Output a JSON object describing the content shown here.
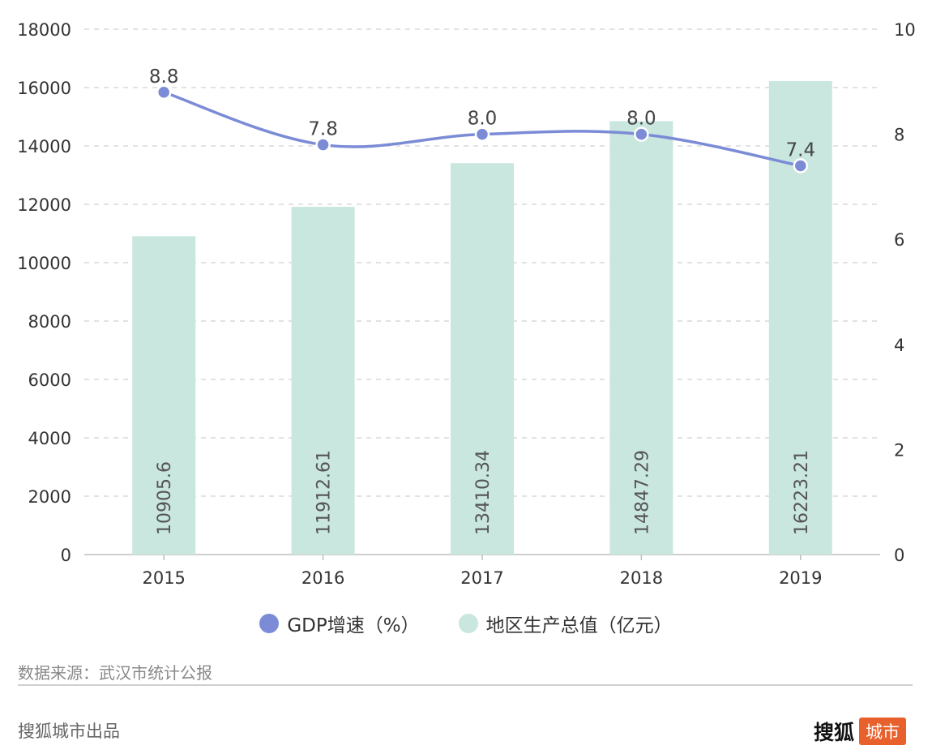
{
  "chart_data": {
    "type": "bar",
    "categories": [
      "2015",
      "2016",
      "2017",
      "2018",
      "2019"
    ],
    "series": [
      {
        "name": "地区生产总值（亿元）",
        "type": "bar",
        "axis": "left",
        "values": [
          10905.6,
          11912.61,
          13410.34,
          14847.29,
          16223.21
        ],
        "labels": [
          "10905.6",
          "11912.61",
          "13410.34",
          "14847.29",
          "16223.21"
        ]
      },
      {
        "name": "GDP增速（%）",
        "type": "line",
        "axis": "right",
        "values": [
          8.8,
          7.8,
          8.0,
          8.0,
          7.4
        ],
        "labels": [
          "8.8",
          "7.8",
          "8.0",
          "8.0",
          "7.4"
        ]
      }
    ],
    "ylim_left": [
      0,
      18000
    ],
    "yticks_left": [
      0,
      2000,
      4000,
      6000,
      8000,
      10000,
      12000,
      14000,
      16000,
      18000
    ],
    "ylim_right": [
      0,
      10
    ],
    "yticks_right": [
      0,
      2,
      4,
      6,
      8,
      10
    ],
    "grid": "horizontal-dashed",
    "legend": "bottom-center"
  },
  "colors": {
    "bar": "#c9e6df",
    "line": "#7b8bd6",
    "grid": "#d9d9d9",
    "axis_text": "#333333"
  },
  "legend": [
    {
      "label": "GDP增速（%）",
      "color": "#7b8bd6"
    },
    {
      "label": "地区生产总值（亿元）",
      "color": "#c9e6df"
    }
  ],
  "source": "数据来源：武汉市统计公报",
  "footer": {
    "left": "搜狐城市出品",
    "logo_text": "搜狐",
    "logo_badge": "城市"
  }
}
